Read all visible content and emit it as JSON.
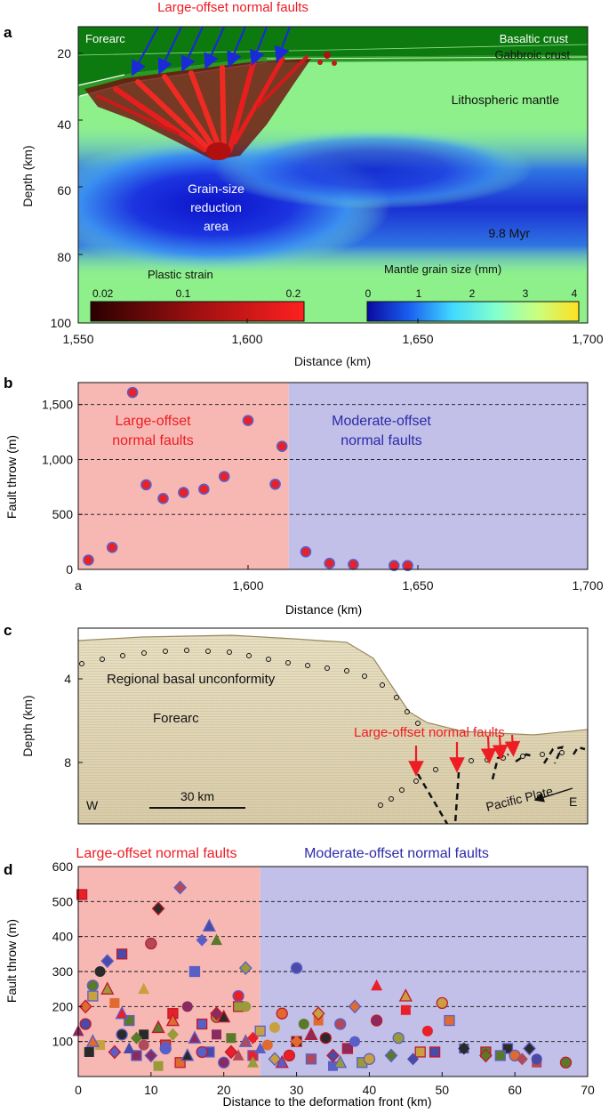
{
  "panels": {
    "a": {
      "letter": "a",
      "title": "Large-offset normal faults",
      "labels": {
        "forearc": "Forearc",
        "basaltic": "Basaltic crust",
        "gabbroic": "Gabbroic crust",
        "lith": "Lithospheric mantle",
        "grain1": "Grain-size",
        "grain2": "reduction",
        "grain3": "area",
        "time": "9.8 Myr"
      },
      "ylabel": "Depth (km)",
      "xlabel": "Distance (km)",
      "xticks": [
        "1,550",
        "1,600",
        "1,650",
        "1,700"
      ],
      "yticks": [
        "20",
        "40",
        "60",
        "80",
        "100"
      ],
      "cb1": {
        "title": "Plastic strain",
        "ticks": [
          "0.02",
          "0.1",
          "0.2"
        ]
      },
      "cb2": {
        "title": "Mantle grain size (mm)",
        "ticks": [
          "0",
          "1",
          "2",
          "3",
          "4"
        ]
      }
    },
    "b": {
      "letter": "b",
      "label_large_1": "Large-offset",
      "label_large_2": "normal faults",
      "label_mod_1": "Moderate-offset",
      "label_mod_2": "normal faults",
      "ylabel": "Fault throw (m)",
      "xlabel": "Distance (km)",
      "xticks": [
        "a",
        "1,600",
        "1,650",
        "1,700"
      ],
      "yticks": [
        "0",
        "500",
        "1,000",
        "1,500"
      ]
    },
    "c": {
      "letter": "c",
      "ylabel": "Depth (km)",
      "yticks": [
        "4",
        "8"
      ],
      "labels": {
        "unconf": "Regional basal unconformity",
        "forearc": "Forearc",
        "faults": "Large-offset normal faults",
        "pacific": "Pacific Plate",
        "west": "W",
        "east": "E",
        "scale": "30 km"
      }
    },
    "d": {
      "letter": "d",
      "title_large": "Large-offset normal faults",
      "title_mod": "Moderate-offset normal faults",
      "ylabel": "Fault throw (m)",
      "xlabel": "Distance to the deformation front (km)",
      "xticks": [
        "0",
        "10",
        "20",
        "30",
        "40",
        "50",
        "60",
        "70"
      ],
      "yticks": [
        "100",
        "200",
        "300",
        "400",
        "500",
        "600"
      ]
    }
  },
  "colors": {
    "red_region": "#f7b8b4",
    "blue_region": "#c2bfe9",
    "red_text": "#ee1c23",
    "blue_text": "#2b2ba8",
    "marker_fill": "#e8202a",
    "marker_edge": "#5a5fc8"
  },
  "chart_data": [
    {
      "type": "heatmap",
      "panel": "a",
      "title": "Large-offset normal faults",
      "xlabel": "Distance (km)",
      "ylabel": "Depth (km)",
      "xlim": [
        1550,
        1700
      ],
      "ylim": [
        100,
        10
      ],
      "colorbars": [
        {
          "label": "Plastic strain",
          "range": [
            0.02,
            0.2
          ]
        },
        {
          "label": "Mantle grain size (mm)",
          "range": [
            0,
            4
          ]
        }
      ],
      "annotations": [
        "Forearc",
        "Basaltic crust",
        "Gabbroic crust",
        "Lithospheric mantle",
        "Grain-size reduction area",
        "9.8 Myr"
      ]
    },
    {
      "type": "scatter",
      "panel": "b",
      "xlabel": "Distance (km)",
      "ylabel": "Fault throw (m)",
      "xlim": [
        1550,
        1700
      ],
      "ylim": [
        0,
        1700
      ],
      "regions": [
        {
          "label": "Large-offset normal faults",
          "x": [
            1550,
            1612
          ]
        },
        {
          "label": "Moderate-offset normal faults",
          "x": [
            1612,
            1700
          ]
        }
      ],
      "x": [
        1553,
        1560,
        1566,
        1570,
        1575,
        1581,
        1587,
        1593,
        1600,
        1608,
        1610,
        1617,
        1624,
        1631,
        1643,
        1647
      ],
      "y": [
        85,
        200,
        1610,
        770,
        645,
        700,
        730,
        845,
        1355,
        775,
        1120,
        160,
        55,
        45,
        35,
        35
      ]
    },
    {
      "type": "scatter",
      "panel": "d",
      "xlabel": "Distance to the deformation front (km)",
      "ylabel": "Fault throw (m)",
      "xlim": [
        0,
        70
      ],
      "ylim": [
        0,
        600
      ],
      "regions": [
        {
          "label": "Large-offset normal faults",
          "x": [
            0,
            25
          ]
        },
        {
          "label": "Moderate-offset normal faults",
          "x": [
            25,
            70
          ]
        }
      ],
      "series": [
        {
          "marker": "square",
          "points": [
            [
              0.5,
              520
            ],
            [
              2,
              230
            ],
            [
              5,
              210
            ],
            [
              6,
              350
            ],
            [
              7,
              160
            ],
            [
              9,
              120
            ],
            [
              12,
              90
            ],
            [
              16,
              300
            ],
            [
              19,
              120
            ],
            [
              22,
              200
            ],
            [
              24,
              60
            ],
            [
              3,
              90
            ],
            [
              14,
              40
            ],
            [
              18,
              70
            ],
            [
              21,
              110
            ],
            [
              30,
              100
            ],
            [
              32,
              50
            ],
            [
              35,
              30
            ],
            [
              37,
              80
            ],
            [
              39,
              40
            ],
            [
              45,
              190
            ],
            [
              47,
              70
            ],
            [
              51,
              160
            ],
            [
              53,
              80
            ],
            [
              56,
              70
            ],
            [
              59,
              80
            ],
            [
              63,
              40
            ],
            [
              17,
              150
            ],
            [
              8,
              60
            ],
            [
              11,
              30
            ],
            [
              13,
              180
            ],
            [
              25,
              130
            ],
            [
              33,
              160
            ],
            [
              49,
              70
            ],
            [
              58,
              60
            ],
            [
              1.5,
              70
            ]
          ]
        },
        {
          "marker": "circle",
          "points": [
            [
              2,
              260
            ],
            [
              3,
              300
            ],
            [
              10,
              380
            ],
            [
              12,
              80
            ],
            [
              15,
              200
            ],
            [
              19,
              170
            ],
            [
              22,
              230
            ],
            [
              27,
              140
            ],
            [
              28,
              180
            ],
            [
              30,
              310
            ],
            [
              31,
              150
            ],
            [
              34,
              110
            ],
            [
              36,
              150
            ],
            [
              38,
              100
            ],
            [
              41,
              160
            ],
            [
              44,
              110
            ],
            [
              48,
              130
            ],
            [
              50,
              210
            ],
            [
              60,
              60
            ],
            [
              63,
              50
            ],
            [
              67,
              40
            ],
            [
              6,
              120
            ],
            [
              9,
              90
            ],
            [
              17,
              70
            ],
            [
              20,
              40
            ],
            [
              23,
              200
            ],
            [
              29,
              60
            ],
            [
              40,
              50
            ],
            [
              26,
              90
            ],
            [
              1,
              150
            ]
          ]
        },
        {
          "marker": "triangle",
          "points": [
            [
              0,
              130
            ],
            [
              4,
              250
            ],
            [
              6,
              180
            ],
            [
              9,
              250
            ],
            [
              13,
              160
            ],
            [
              18,
              430
            ],
            [
              19,
              390
            ],
            [
              20,
              170
            ],
            [
              23,
              100
            ],
            [
              25,
              80
            ],
            [
              32,
              120
            ],
            [
              36,
              40
            ],
            [
              41,
              260
            ],
            [
              45,
              230
            ],
            [
              2,
              100
            ],
            [
              7,
              80
            ],
            [
              11,
              140
            ],
            [
              15,
              60
            ],
            [
              22,
              60
            ],
            [
              28,
              40
            ],
            [
              16,
              110
            ],
            [
              24,
              40
            ]
          ]
        },
        {
          "marker": "diamond",
          "points": [
            [
              1,
              200
            ],
            [
              4,
              330
            ],
            [
              8,
              110
            ],
            [
              11,
              480
            ],
            [
              14,
              540
            ],
            [
              17,
              390
            ],
            [
              19,
              180
            ],
            [
              23,
              310
            ],
            [
              24,
              110
            ],
            [
              33,
              180
            ],
            [
              38,
              200
            ],
            [
              46,
              50
            ],
            [
              56,
              60
            ],
            [
              62,
              80
            ],
            [
              61,
              50
            ],
            [
              5,
              70
            ],
            [
              10,
              60
            ],
            [
              13,
              120
            ],
            [
              21,
              70
            ],
            [
              27,
              50
            ],
            [
              30,
              100
            ],
            [
              35,
              60
            ],
            [
              43,
              60
            ],
            [
              53,
              80
            ]
          ]
        }
      ]
    }
  ]
}
